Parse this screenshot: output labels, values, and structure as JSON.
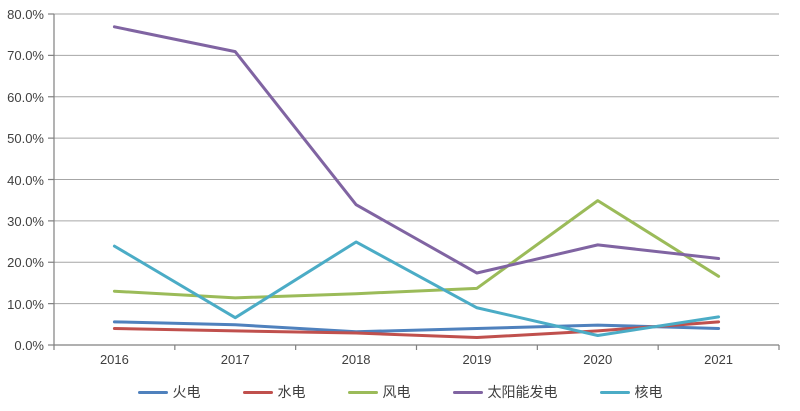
{
  "chart_data": {
    "type": "line",
    "title": "",
    "xlabel": "",
    "ylabel": "",
    "x": [
      "2016",
      "2017",
      "2018",
      "2019",
      "2020",
      "2021"
    ],
    "y_ticks": [
      "0.0%",
      "10.0%",
      "20.0%",
      "30.0%",
      "40.0%",
      "50.0%",
      "60.0%",
      "70.0%",
      "80.0%"
    ],
    "ylim": [
      0,
      80
    ],
    "y_step": 10,
    "grid": "horizontal",
    "legend_position": "bottom",
    "series": [
      {
        "name": "火电",
        "color": "#4F81BD",
        "values": [
          5.6,
          4.9,
          3.2,
          4.0,
          4.8,
          4.0
        ]
      },
      {
        "name": "水电",
        "color": "#C0504D",
        "values": [
          4.0,
          3.4,
          2.9,
          1.8,
          3.4,
          5.6
        ]
      },
      {
        "name": "风电",
        "color": "#9BBB59",
        "values": [
          13.0,
          11.4,
          12.4,
          13.7,
          34.9,
          16.6
        ]
      },
      {
        "name": "太阳能发电",
        "color": "#8064A2",
        "values": [
          76.9,
          70.9,
          33.9,
          17.4,
          24.2,
          20.9
        ]
      },
      {
        "name": "核电",
        "color": "#4BACC6",
        "values": [
          23.9,
          6.6,
          24.9,
          9.0,
          2.3,
          6.8
        ]
      }
    ],
    "colors": {
      "gridline": "#A6A6A6",
      "axis": "#808080",
      "text": "#3F3F3F",
      "background": "#FFFFFF"
    }
  }
}
